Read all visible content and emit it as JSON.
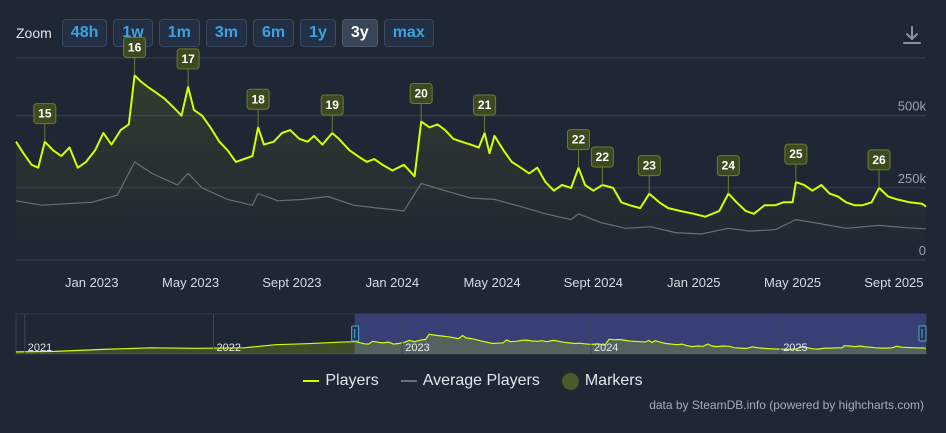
{
  "zoom": {
    "label": "Zoom",
    "buttons": [
      "48h",
      "1w",
      "1m",
      "3m",
      "6m",
      "1y",
      "3y",
      "max"
    ],
    "active": "3y"
  },
  "download_icon": "download-icon",
  "colors": {
    "players": "#d4ff00",
    "average": "#6b6f75",
    "marker_fill": "#3d4a1f",
    "marker_stroke": "#6a7d33",
    "grid": "#3a4351",
    "background": "#1f2634",
    "navigator_selected": "#3f4a8a"
  },
  "chart_data": {
    "type": "line",
    "x_axis": {
      "type": "datetime",
      "range": [
        "2022-10-01",
        "2025-10-10"
      ],
      "ticks": [
        {
          "date": "2023-01-01",
          "label": "Jan 2023"
        },
        {
          "date": "2023-05-01",
          "label": "May 2023"
        },
        {
          "date": "2023-09-01",
          "label": "Sept 2023"
        },
        {
          "date": "2024-01-01",
          "label": "Jan 2024"
        },
        {
          "date": "2024-05-01",
          "label": "May 2024"
        },
        {
          "date": "2024-09-01",
          "label": "Sept 2024"
        },
        {
          "date": "2025-01-01",
          "label": "Jan 2025"
        },
        {
          "date": "2025-05-01",
          "label": "May 2025"
        },
        {
          "date": "2025-09-01",
          "label": "Sept 2025"
        }
      ]
    },
    "y_axis": {
      "range": [
        0,
        700000
      ],
      "ticks": [
        {
          "value": 0,
          "label": "0"
        },
        {
          "value": 250000,
          "label": "250k"
        },
        {
          "value": 500000,
          "label": "500k"
        }
      ],
      "grid": true
    },
    "series": [
      {
        "name": "Players",
        "points": [
          [
            "2022-10-01",
            410000
          ],
          [
            "2022-10-10",
            370000
          ],
          [
            "2022-10-20",
            330000
          ],
          [
            "2022-10-28",
            320000
          ],
          [
            "2022-11-05",
            410000
          ],
          [
            "2022-11-15",
            380000
          ],
          [
            "2022-11-25",
            360000
          ],
          [
            "2022-12-05",
            390000
          ],
          [
            "2022-12-15",
            320000
          ],
          [
            "2022-12-25",
            340000
          ],
          [
            "2023-01-05",
            380000
          ],
          [
            "2023-01-15",
            440000
          ],
          [
            "2023-01-25",
            400000
          ],
          [
            "2023-02-05",
            450000
          ],
          [
            "2023-02-15",
            470000
          ],
          [
            "2023-02-22",
            640000
          ],
          [
            "2023-03-01",
            620000
          ],
          [
            "2023-03-10",
            600000
          ],
          [
            "2023-03-20",
            580000
          ],
          [
            "2023-03-30",
            560000
          ],
          [
            "2023-04-10",
            530000
          ],
          [
            "2023-04-20",
            500000
          ],
          [
            "2023-04-28",
            600000
          ],
          [
            "2023-05-05",
            520000
          ],
          [
            "2023-05-15",
            500000
          ],
          [
            "2023-05-25",
            460000
          ],
          [
            "2023-06-05",
            410000
          ],
          [
            "2023-06-15",
            380000
          ],
          [
            "2023-06-25",
            340000
          ],
          [
            "2023-07-05",
            350000
          ],
          [
            "2023-07-15",
            360000
          ],
          [
            "2023-07-22",
            460000
          ],
          [
            "2023-07-29",
            400000
          ],
          [
            "2023-08-10",
            410000
          ],
          [
            "2023-08-20",
            440000
          ],
          [
            "2023-08-30",
            450000
          ],
          [
            "2023-09-10",
            420000
          ],
          [
            "2023-09-20",
            410000
          ],
          [
            "2023-09-28",
            430000
          ],
          [
            "2023-10-08",
            400000
          ],
          [
            "2023-10-20",
            440000
          ],
          [
            "2023-10-28",
            420000
          ],
          [
            "2023-11-10",
            380000
          ],
          [
            "2023-11-20",
            360000
          ],
          [
            "2023-12-01",
            340000
          ],
          [
            "2023-12-10",
            350000
          ],
          [
            "2023-12-20",
            330000
          ],
          [
            "2024-01-01",
            310000
          ],
          [
            "2024-01-15",
            330000
          ],
          [
            "2024-01-28",
            290000
          ],
          [
            "2024-02-05",
            480000
          ],
          [
            "2024-02-15",
            460000
          ],
          [
            "2024-02-25",
            470000
          ],
          [
            "2024-03-05",
            450000
          ],
          [
            "2024-03-15",
            420000
          ],
          [
            "2024-03-25",
            410000
          ],
          [
            "2024-04-05",
            400000
          ],
          [
            "2024-04-15",
            390000
          ],
          [
            "2024-04-22",
            440000
          ],
          [
            "2024-04-28",
            370000
          ],
          [
            "2024-05-04",
            430000
          ],
          [
            "2024-05-15",
            380000
          ],
          [
            "2024-05-25",
            340000
          ],
          [
            "2024-06-05",
            320000
          ],
          [
            "2024-06-15",
            300000
          ],
          [
            "2024-06-25",
            320000
          ],
          [
            "2024-07-05",
            270000
          ],
          [
            "2024-07-15",
            240000
          ],
          [
            "2024-07-25",
            260000
          ],
          [
            "2024-08-05",
            250000
          ],
          [
            "2024-08-14",
            320000
          ],
          [
            "2024-08-22",
            260000
          ],
          [
            "2024-09-01",
            240000
          ],
          [
            "2024-09-12",
            260000
          ],
          [
            "2024-09-25",
            250000
          ],
          [
            "2024-10-05",
            200000
          ],
          [
            "2024-10-15",
            190000
          ],
          [
            "2024-10-28",
            180000
          ],
          [
            "2024-11-08",
            230000
          ],
          [
            "2024-11-20",
            200000
          ],
          [
            "2024-12-01",
            180000
          ],
          [
            "2024-12-15",
            170000
          ],
          [
            "2025-01-01",
            160000
          ],
          [
            "2025-01-15",
            150000
          ],
          [
            "2025-02-01",
            170000
          ],
          [
            "2025-02-12",
            230000
          ],
          [
            "2025-02-22",
            200000
          ],
          [
            "2025-03-05",
            170000
          ],
          [
            "2025-03-15",
            160000
          ],
          [
            "2025-03-28",
            190000
          ],
          [
            "2025-04-10",
            190000
          ],
          [
            "2025-04-20",
            200000
          ],
          [
            "2025-05-01",
            200000
          ],
          [
            "2025-05-05",
            270000
          ],
          [
            "2025-05-15",
            260000
          ],
          [
            "2025-05-25",
            240000
          ],
          [
            "2025-06-05",
            260000
          ],
          [
            "2025-06-15",
            230000
          ],
          [
            "2025-06-25",
            220000
          ],
          [
            "2025-07-05",
            200000
          ],
          [
            "2025-07-15",
            190000
          ],
          [
            "2025-07-25",
            190000
          ],
          [
            "2025-08-05",
            200000
          ],
          [
            "2025-08-14",
            250000
          ],
          [
            "2025-08-25",
            220000
          ],
          [
            "2025-09-05",
            210000
          ],
          [
            "2025-09-20",
            200000
          ],
          [
            "2025-10-05",
            195000
          ],
          [
            "2025-10-10",
            185000
          ]
        ]
      },
      {
        "name": "Average Players",
        "points": [
          [
            "2022-10-01",
            205000
          ],
          [
            "2022-11-01",
            190000
          ],
          [
            "2022-12-01",
            195000
          ],
          [
            "2023-01-01",
            200000
          ],
          [
            "2023-02-01",
            225000
          ],
          [
            "2023-02-22",
            340000
          ],
          [
            "2023-03-15",
            300000
          ],
          [
            "2023-04-15",
            260000
          ],
          [
            "2023-04-28",
            300000
          ],
          [
            "2023-05-15",
            250000
          ],
          [
            "2023-06-15",
            210000
          ],
          [
            "2023-07-15",
            190000
          ],
          [
            "2023-07-22",
            230000
          ],
          [
            "2023-08-15",
            205000
          ],
          [
            "2023-09-15",
            210000
          ],
          [
            "2023-10-15",
            220000
          ],
          [
            "2023-11-15",
            190000
          ],
          [
            "2023-12-15",
            180000
          ],
          [
            "2024-01-15",
            170000
          ],
          [
            "2024-02-05",
            265000
          ],
          [
            "2024-03-05",
            240000
          ],
          [
            "2024-04-05",
            215000
          ],
          [
            "2024-05-04",
            210000
          ],
          [
            "2024-06-05",
            185000
          ],
          [
            "2024-07-05",
            160000
          ],
          [
            "2024-08-05",
            140000
          ],
          [
            "2024-08-14",
            160000
          ],
          [
            "2024-09-10",
            130000
          ],
          [
            "2024-10-10",
            110000
          ],
          [
            "2024-11-10",
            115000
          ],
          [
            "2024-12-10",
            95000
          ],
          [
            "2025-01-10",
            90000
          ],
          [
            "2025-02-12",
            110000
          ],
          [
            "2025-03-10",
            100000
          ],
          [
            "2025-04-10",
            105000
          ],
          [
            "2025-05-05",
            140000
          ],
          [
            "2025-06-05",
            125000
          ],
          [
            "2025-07-05",
            110000
          ],
          [
            "2025-08-14",
            120000
          ],
          [
            "2025-09-15",
            112000
          ],
          [
            "2025-10-10",
            108000
          ]
        ]
      }
    ],
    "markers": [
      {
        "label": "15",
        "date": "2022-11-05",
        "value": 410000
      },
      {
        "label": "16",
        "date": "2023-02-22",
        "value": 640000
      },
      {
        "label": "17",
        "date": "2023-04-28",
        "value": 600000
      },
      {
        "label": "18",
        "date": "2023-07-22",
        "value": 460000
      },
      {
        "label": "19",
        "date": "2023-10-20",
        "value": 440000
      },
      {
        "label": "20",
        "date": "2024-02-05",
        "value": 480000
      },
      {
        "label": "21",
        "date": "2024-04-22",
        "value": 440000
      },
      {
        "label": "22",
        "date": "2024-08-14",
        "value": 320000
      },
      {
        "label": "22",
        "date": "2024-09-12",
        "value": 260000
      },
      {
        "label": "23",
        "date": "2024-11-08",
        "value": 230000
      },
      {
        "label": "24",
        "date": "2025-02-12",
        "value": 230000
      },
      {
        "label": "25",
        "date": "2025-05-05",
        "value": 270000
      },
      {
        "label": "26",
        "date": "2025-08-14",
        "value": 250000
      }
    ],
    "legend": {
      "position": "bottom-center",
      "items": [
        "Players",
        "Average Players",
        "Markers"
      ]
    }
  },
  "navigator": {
    "year_labels": [
      "2021",
      "2022",
      "2023",
      "2024",
      "2025"
    ],
    "selected_range": [
      "2022-10-01",
      "2025-10-10"
    ]
  },
  "credits": "data by SteamDB.info (powered by highcharts.com)"
}
